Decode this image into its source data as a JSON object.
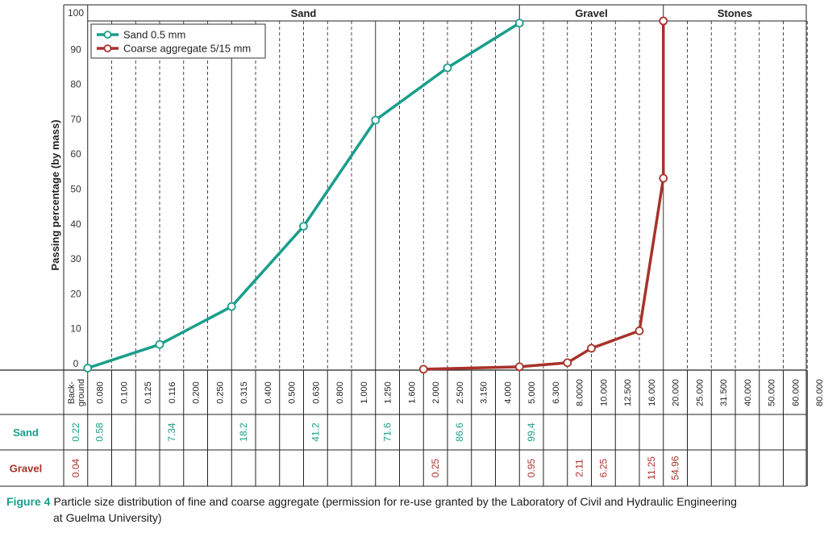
{
  "chart_data": {
    "type": "line",
    "ylabel": "Passing percentage (by mass)",
    "ylim": [
      0,
      100
    ],
    "yticks": [
      0,
      10,
      20,
      30,
      40,
      50,
      60,
      70,
      80,
      90,
      100
    ],
    "sieve_labels": [
      "Back-\nground",
      "0.080",
      "0.100",
      "0.125",
      "0.116",
      "0.200",
      "0.250",
      "0.315",
      "0.400",
      "0.500",
      "0.630",
      "0.800",
      "1.000",
      "1.250",
      "1.600",
      "2.000",
      "2.500",
      "3.150",
      "4.000",
      "5.000",
      "6.300",
      "8.0000",
      "10.000",
      "12.500",
      "16.000",
      "20.000",
      "25.000",
      "31.500",
      "40.000",
      "50.000",
      "60.000",
      "80.000"
    ],
    "zones": [
      {
        "name": "Sand",
        "from": 0.08,
        "to": 5.0
      },
      {
        "name": "Gravel",
        "from": 5.0,
        "to": 20.0
      },
      {
        "name": "Stones",
        "from": 20.0,
        "to": 80.0
      }
    ],
    "series": [
      {
        "name": "Sand 0.5 mm",
        "color": "#1a9e8c",
        "x": [
          "0.080",
          "0.116",
          "0.315",
          "0.630",
          "1.250",
          "2.500",
          "5.000"
        ],
        "y": [
          0.58,
          7.34,
          18.2,
          41.2,
          71.6,
          86.6,
          99.4
        ]
      },
      {
        "name": "Coarse aggregate 5/15 mm",
        "color": "#a8322a",
        "x": [
          "2.000",
          "5.000",
          "8.0000",
          "10.000",
          "16.000",
          "20.000",
          "20.000"
        ],
        "y": [
          0.25,
          0.95,
          2.11,
          6.25,
          11.25,
          54.96,
          100
        ]
      }
    ],
    "table": [
      {
        "label": "Sand",
        "color": "#1a9e8c",
        "cells": [
          {
            "col": 0,
            "v": "0.22"
          },
          {
            "col": 1,
            "v": "0.58"
          },
          {
            "col": 4,
            "v": "7.34"
          },
          {
            "col": 7,
            "v": "18.2"
          },
          {
            "col": 10,
            "v": "41.2"
          },
          {
            "col": 13,
            "v": "71.6"
          },
          {
            "col": 16,
            "v": "86.6"
          },
          {
            "col": 19,
            "v": "99.4"
          }
        ]
      },
      {
        "label": "Gravel",
        "color": "#a8322a",
        "cells": [
          {
            "col": 0,
            "v": "0.04"
          },
          {
            "col": 15,
            "v": "0.25"
          },
          {
            "col": 19,
            "v": "0.95"
          },
          {
            "col": 21,
            "v": "2.11"
          },
          {
            "col": 22,
            "v": "6.25"
          },
          {
            "col": 24,
            "v": "11.25"
          },
          {
            "col": 25,
            "v": "54.96"
          }
        ]
      }
    ],
    "legend": "top-left",
    "grid": true
  },
  "caption": {
    "label": "Figure 4",
    "text_line1": "Particle size distribution of fine and coarse aggregate (permission for re-use granted by the Laboratory of Civil and Hydraulic Engineering",
    "text_line2": "at Guelma University)"
  }
}
